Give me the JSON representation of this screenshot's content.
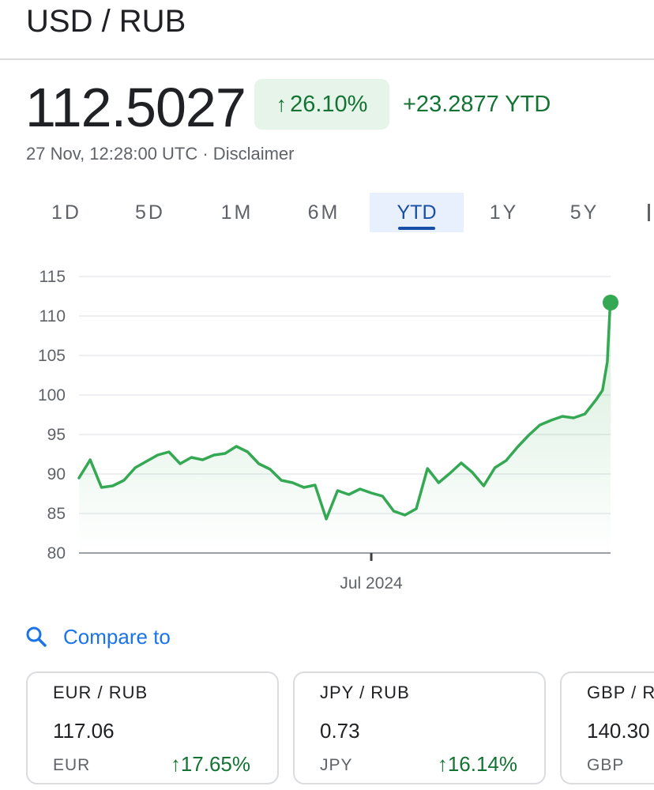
{
  "header": {
    "pair": "USD / RUB"
  },
  "quote": {
    "price": "112.5027",
    "change_pct": "26.10%",
    "change_abs": "+23.2877 YTD",
    "timestamp": "27 Nov, 12:28:00 UTC · Disclaimer",
    "up_arrow": "↑"
  },
  "range_tabs": [
    "1D",
    "5D",
    "1M",
    "6M",
    "YTD",
    "1Y",
    "5Y"
  ],
  "active_tab": "YTD",
  "colors": {
    "positive": "#137333",
    "line": "#34a853",
    "tab_active": "#174ea6",
    "link": "#1a73e8"
  },
  "chart_data": {
    "type": "line",
    "ylim": [
      80,
      115
    ],
    "yticks": [
      "115",
      "110",
      "105",
      "100",
      "95",
      "90",
      "85",
      "80"
    ],
    "xtick_label": "Jul 2024",
    "grid": true,
    "series": [
      {
        "x": [
          "2024-01-01",
          "2024-01-08",
          "2024-01-15",
          "2024-01-22",
          "2024-01-29",
          "2024-02-05",
          "2024-02-12",
          "2024-02-19",
          "2024-02-26",
          "2024-03-04",
          "2024-03-11",
          "2024-03-18",
          "2024-03-25",
          "2024-04-01",
          "2024-04-08",
          "2024-04-15",
          "2024-04-22",
          "2024-04-29",
          "2024-05-06",
          "2024-05-13",
          "2024-05-20",
          "2024-05-27",
          "2024-06-03",
          "2024-06-10",
          "2024-06-17",
          "2024-06-24",
          "2024-07-01",
          "2024-07-08",
          "2024-07-15",
          "2024-07-22",
          "2024-07-29",
          "2024-08-05",
          "2024-08-12",
          "2024-08-19",
          "2024-08-26",
          "2024-09-02",
          "2024-09-09",
          "2024-09-16",
          "2024-09-23",
          "2024-09-30",
          "2024-10-07",
          "2024-10-14",
          "2024-10-21",
          "2024-10-28",
          "2024-11-04",
          "2024-11-11",
          "2024-11-18",
          "2024-11-22",
          "2024-11-25",
          "2024-11-27"
        ],
        "y": [
          89.5,
          91.8,
          88.3,
          88.5,
          89.2,
          90.8,
          91.6,
          92.4,
          92.8,
          91.3,
          92.1,
          91.8,
          92.4,
          92.6,
          93.5,
          92.8,
          91.3,
          90.6,
          89.2,
          88.9,
          88.3,
          88.6,
          84.3,
          87.9,
          87.4,
          88.1,
          87.6,
          87.2,
          85.3,
          84.8,
          85.6,
          90.7,
          88.9,
          90.1,
          91.4,
          90.2,
          88.5,
          90.8,
          91.7,
          93.4,
          94.9,
          96.2,
          96.8,
          97.3,
          97.1,
          97.6,
          99.4,
          100.6,
          104.2,
          112.5
        ]
      }
    ]
  },
  "compare": {
    "label": "Compare to",
    "icon": "search-icon"
  },
  "compare_cards": [
    {
      "pair": "EUR / RUB",
      "price": "117.06",
      "currency": "EUR",
      "change": "17.65%"
    },
    {
      "pair": "JPY / RUB",
      "price": "0.73",
      "currency": "JPY",
      "change": "16.14%"
    },
    {
      "pair": "GBP / RUB",
      "price": "140.30",
      "currency": "GBP",
      "change": ""
    }
  ]
}
